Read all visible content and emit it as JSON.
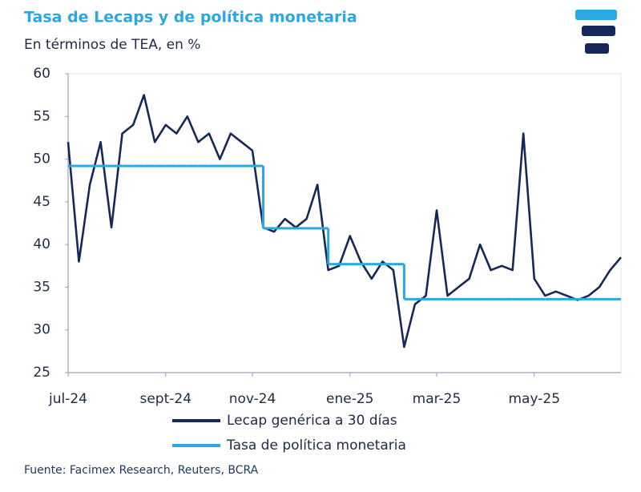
{
  "chart_data": {
    "type": "line",
    "title": "Tasa de Lecaps y de política monetaria",
    "subtitle": "En términos de TEA, en %",
    "source": "Fuente: Facimex Research, Reuters, BCRA",
    "categories": [
      "jul-24",
      null,
      null,
      null,
      null,
      null,
      null,
      null,
      null,
      "sept-24",
      null,
      null,
      null,
      null,
      null,
      null,
      null,
      "nov-24",
      null,
      null,
      null,
      null,
      null,
      null,
      null,
      null,
      "ene-25",
      null,
      null,
      null,
      null,
      null,
      null,
      null,
      "mar-25",
      null,
      null,
      null,
      null,
      null,
      null,
      null,
      null,
      "may-25",
      null,
      null,
      null,
      null,
      null,
      null,
      null,
      null
    ],
    "series": [
      {
        "name": "Lecap genérica a 30 días",
        "color": "#16285a",
        "values": [
          52,
          38,
          47,
          52,
          42,
          53,
          54,
          57.5,
          52,
          54,
          53,
          55,
          52,
          53,
          50,
          53,
          52,
          51,
          42,
          41.5,
          43,
          42,
          43,
          47,
          37,
          37.5,
          41,
          38,
          36,
          38,
          37,
          28,
          33,
          34,
          44,
          34,
          35,
          36,
          40,
          37,
          37.5,
          37,
          53,
          36,
          34,
          34.5,
          34,
          33.5,
          34,
          35,
          37,
          38.5
        ]
      },
      {
        "name": "Tasa de política monetaria",
        "color": "#2aa8e2",
        "step": true,
        "values": [
          49.2,
          49.2,
          49.2,
          49.2,
          49.2,
          49.2,
          49.2,
          49.2,
          49.2,
          49.2,
          49.2,
          49.2,
          49.2,
          49.2,
          49.2,
          49.2,
          49.2,
          49.2,
          41.9,
          41.9,
          41.9,
          41.9,
          41.9,
          41.9,
          37.7,
          37.7,
          37.7,
          37.7,
          37.7,
          37.7,
          37.7,
          33.6,
          33.6,
          33.6,
          33.6,
          33.6,
          33.6,
          33.6,
          33.6,
          33.6,
          33.6,
          33.6,
          33.6,
          33.6,
          33.6,
          33.6,
          33.6,
          33.6,
          33.6,
          33.6,
          33.6,
          33.6
        ]
      }
    ],
    "ylim": [
      25,
      60
    ],
    "yticks": [
      25,
      30,
      35,
      40,
      45,
      50,
      55,
      60
    ],
    "grid": false,
    "legend": "bottom"
  }
}
